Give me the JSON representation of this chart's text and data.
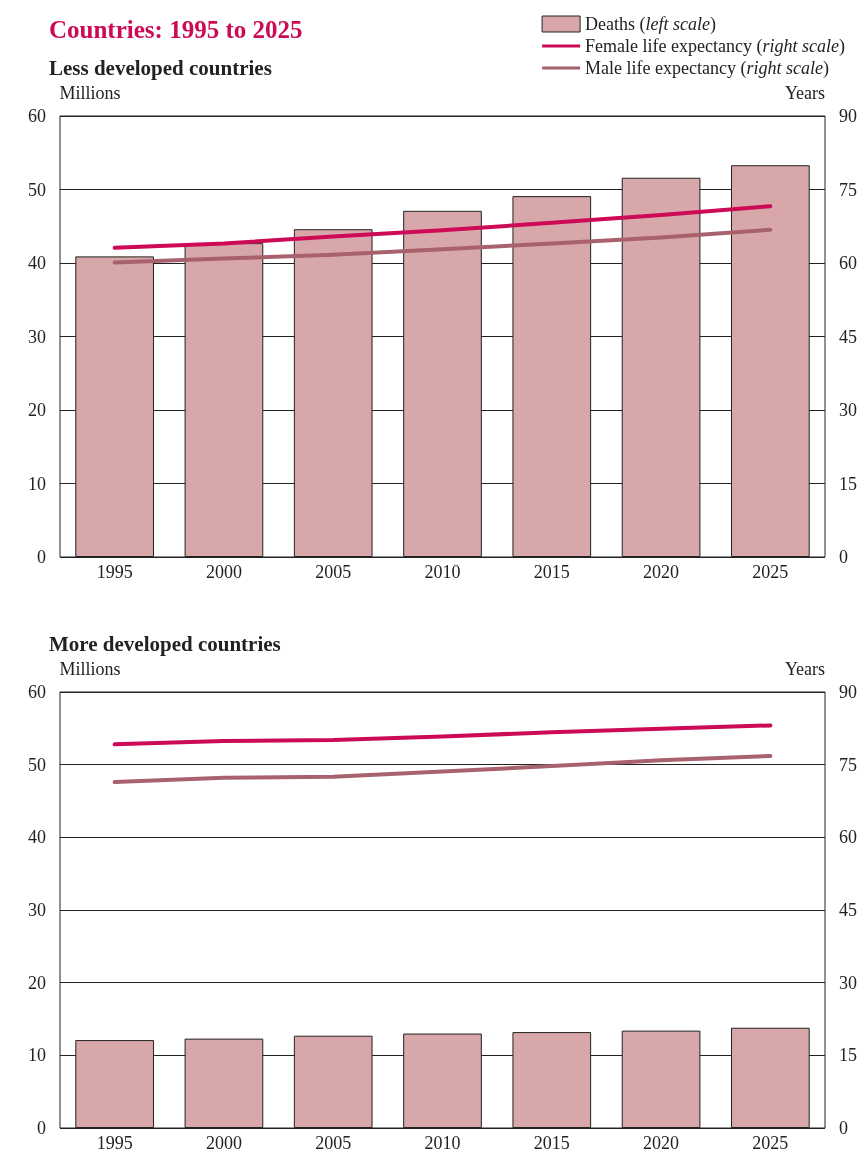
{
  "chart_data": [
    {
      "type": "bar",
      "title": "Countries: 1995 to 2025",
      "subtitle": "Less developed countries",
      "ylabel": "Millions",
      "y2label": "Years",
      "categories": [
        "1995",
        "2000",
        "2005",
        "2010",
        "2015",
        "2020",
        "2025"
      ],
      "series": [
        {
          "name": "Deaths (left scale)",
          "color": "#d8a7a9",
          "values": [
            40.9,
            42.7,
            44.6,
            47.1,
            49.1,
            51.6,
            53.3
          ]
        },
        {
          "name": "Female life expectancy (right scale)",
          "type": "line",
          "axis": "y2",
          "color": "#cc0a55",
          "values": [
            63.1,
            64.0,
            65.4,
            66.7,
            68.2,
            69.8,
            71.6
          ]
        },
        {
          "name": "Male life expectancy (right scale)",
          "type": "line",
          "axis": "y2",
          "color": "#a8626e",
          "values": [
            60.1,
            60.9,
            61.7,
            62.8,
            64.0,
            65.2,
            66.8
          ]
        }
      ],
      "ylim": [
        0,
        60
      ],
      "yticks": [
        0,
        10,
        20,
        30,
        40,
        50,
        60
      ],
      "y2lim": [
        0,
        90
      ],
      "y2ticks": [
        0,
        15,
        30,
        45,
        60,
        75,
        90
      ],
      "grid": "y",
      "legend": "top right",
      "marker": "none",
      "line_style": "solid"
    },
    {
      "type": "bar",
      "subtitle": "More developed countries",
      "ylabel": "Millions",
      "y2label": "Years",
      "categories": [
        "1995",
        "2000",
        "2005",
        "2010",
        "2015",
        "2020",
        "2025"
      ],
      "series": [
        {
          "color": "#d8a7a9",
          "values": [
            12.1,
            12.3,
            12.7,
            13.0,
            13.2,
            13.4,
            13.8
          ]
        },
        {
          "type": "line",
          "axis": "y2",
          "color": "#cc0a55",
          "values": [
            79.2,
            79.9,
            80.1,
            80.8,
            81.7,
            82.4,
            83.1
          ]
        },
        {
          "type": "line",
          "axis": "y2",
          "color": "#a8626e",
          "values": [
            71.4,
            72.3,
            72.5,
            73.6,
            74.7,
            75.9,
            76.8
          ]
        }
      ],
      "ylim": [
        0,
        60
      ],
      "yticks": [
        0,
        10,
        20,
        30,
        40,
        50,
        60
      ],
      "y2lim": [
        0,
        90
      ],
      "y2ticks": [
        0,
        15,
        30,
        45,
        60,
        75,
        90
      ],
      "grid": "y",
      "marker": "none",
      "line_style": "solid"
    }
  ]
}
